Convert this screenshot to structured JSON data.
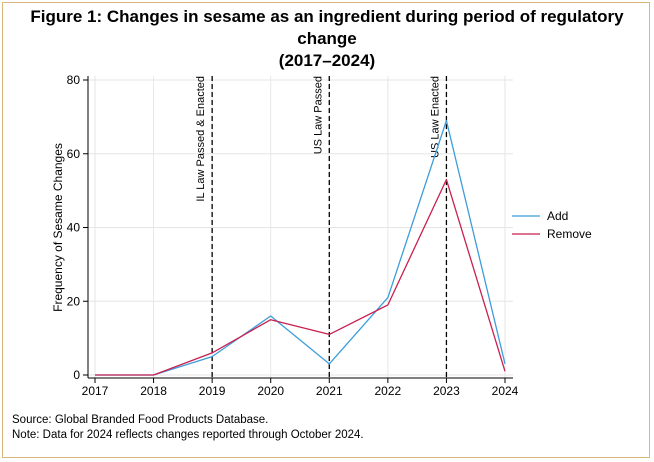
{
  "title_line1": "Figure 1: Changes in sesame as an ingredient during period of regulatory change",
  "title_line2": "(2017–2024)",
  "source": "Source: Global Branded Food Products Database.",
  "note": "Note: Data for 2024 reflects changes reported through October 2024.",
  "chart_data": {
    "type": "line",
    "title": "Figure 1: Changes in sesame as an ingredient during period of regulatory change (2017–2024)",
    "xlabel": "",
    "ylabel": "Frequency of Sesame Changes",
    "x": [
      2017,
      2018,
      2019,
      2020,
      2021,
      2022,
      2023,
      2024
    ],
    "xlim": [
      2017,
      2024
    ],
    "ylim": [
      0,
      80
    ],
    "yticks": [
      0,
      20,
      40,
      60,
      80
    ],
    "grid": true,
    "legend_position": "right",
    "series": [
      {
        "name": "Add",
        "color": "#3d9ddb",
        "values": [
          0,
          0,
          5,
          16,
          3,
          21,
          69,
          3
        ]
      },
      {
        "name": "Remove",
        "color": "#c8204f",
        "values": [
          0,
          0,
          6,
          15,
          11,
          19,
          53,
          1
        ]
      }
    ],
    "annotations": [
      {
        "x": 2019,
        "label": "IL Law Passed & Enacted"
      },
      {
        "x": 2021,
        "label": "US Law Passed"
      },
      {
        "x": 2023,
        "label": "US Law Enacted"
      }
    ]
  }
}
